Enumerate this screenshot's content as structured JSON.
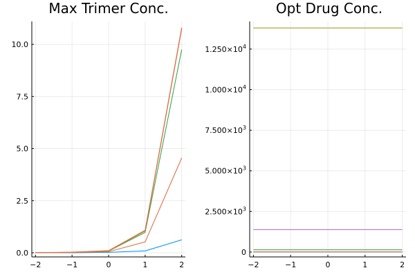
{
  "chart_data": [
    {
      "type": "line",
      "title": "Max Trimer Conc.",
      "xlabel": "",
      "ylabel": "",
      "xlim": [
        -2.1,
        2.1
      ],
      "ylim": [
        -0.2,
        11.1
      ],
      "grid": true,
      "legend": "none",
      "x": [
        -2,
        -1,
        0,
        1,
        2
      ],
      "xticks": [
        -2,
        -1,
        0,
        1,
        2
      ],
      "xtick_labels": [
        "−2",
        "−1",
        "0",
        "1",
        "2"
      ],
      "yticks": [
        0,
        2.5,
        5,
        7.5,
        10
      ],
      "ytick_labels": [
        "0.0",
        "2.5",
        "5.0",
        "7.5",
        "10.0"
      ],
      "series": [
        {
          "color": "#009AFA",
          "values": [
            0.0,
            0.003,
            0.02,
            0.09,
            0.62
          ]
        },
        {
          "color": "#E26F46",
          "values": [
            0.0,
            0.01,
            0.05,
            0.52,
            4.55
          ]
        },
        {
          "color": "#3EA44E",
          "values": [
            0.0,
            0.02,
            0.08,
            0.98,
            9.75
          ]
        },
        {
          "color": "#C271D2",
          "values": [
            0.0,
            0.02,
            0.09,
            1.05,
            10.75
          ]
        },
        {
          "color": "#AC8D18",
          "values": [
            0.0,
            0.02,
            0.09,
            1.05,
            10.78
          ]
        },
        {
          "color": "#E26F46",
          "values": [
            0.0,
            0.03,
            0.1,
            1.08,
            10.8
          ]
        }
      ]
    },
    {
      "type": "line",
      "title": "Opt Drug Conc.",
      "xlabel": "",
      "ylabel": "",
      "xlim": [
        -2.1,
        2.1
      ],
      "ylim": [
        -300,
        14200
      ],
      "grid": true,
      "legend": "none",
      "x": [
        -2,
        -1,
        0,
        1,
        2
      ],
      "xticks": [
        -2,
        -1,
        0,
        1,
        2
      ],
      "xtick_labels": [
        "−2",
        "−1",
        "0",
        "1",
        "2"
      ],
      "yticks": [
        0,
        2500,
        5000,
        7500,
        10000,
        12500
      ],
      "ytick_labels": [
        {
          "base": "0",
          "exp": ""
        },
        {
          "base": "2.500×10",
          "exp": "3"
        },
        {
          "base": "5.000×10",
          "exp": "3"
        },
        {
          "base": "7.500×10",
          "exp": "3"
        },
        {
          "base": "1.000×10",
          "exp": "4"
        },
        {
          "base": "1.250×10",
          "exp": "4"
        }
      ],
      "series": [
        {
          "color": "#009AFA",
          "values": [
            1.4,
            1.4,
            1.4,
            1.4,
            1.4
          ]
        },
        {
          "color": "#E26F46",
          "values": [
            14,
            14,
            14,
            14,
            14
          ]
        },
        {
          "color": "#3EA44E",
          "values": [
            138,
            138,
            138,
            138,
            138
          ]
        },
        {
          "color": "#C271D2",
          "values": [
            1380,
            1380,
            1380,
            1380,
            1380
          ]
        },
        {
          "color": "#AC8D18",
          "values": [
            13800,
            13800,
            13800,
            13800,
            13800
          ]
        }
      ]
    }
  ]
}
